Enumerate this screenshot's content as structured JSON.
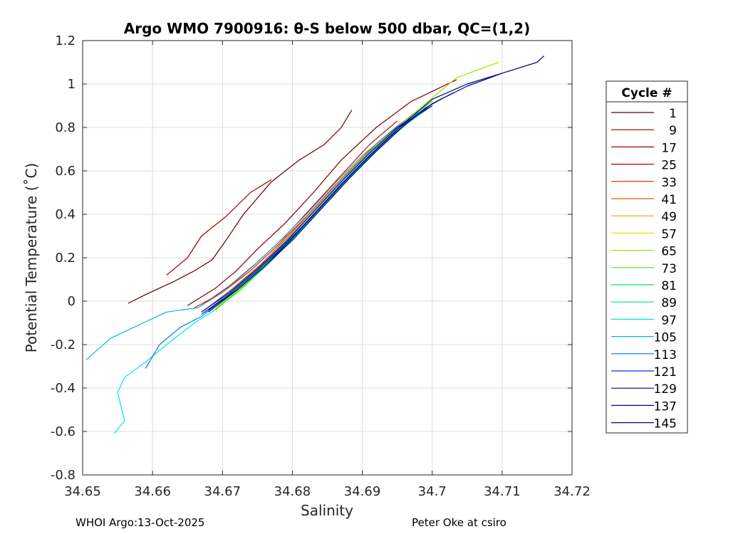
{
  "chart_data": {
    "type": "line",
    "title": "Argo WMO 7900916: θ-S below 500 dbar,  QC=(1,2)",
    "xlabel": "Salinity",
    "ylabel": "Potential Temperature (˚C)",
    "xlim": [
      34.65,
      34.72
    ],
    "ylim": [
      -0.8,
      1.2
    ],
    "xticks": [
      "34.65",
      "34.66",
      "34.67",
      "34.68",
      "34.69",
      "34.7",
      "34.71",
      "34.72"
    ],
    "yticks": [
      "-0.8",
      "-0.6",
      "-0.4",
      "-0.2",
      "0",
      "0.2",
      "0.4",
      "0.6",
      "0.8",
      "1",
      "1.2"
    ],
    "grid": true,
    "legend_title": "Cycle #",
    "legend_position": "right",
    "series": [
      {
        "name": "1",
        "color": "#5a0000",
        "points": [
          [
            34.6565,
            -0.01
          ],
          [
            34.659,
            0.03
          ],
          [
            34.663,
            0.09
          ],
          [
            34.666,
            0.14
          ],
          [
            34.6685,
            0.19
          ],
          [
            34.6705,
            0.28
          ],
          [
            34.673,
            0.4
          ],
          [
            34.677,
            0.55
          ],
          [
            34.681,
            0.65
          ],
          [
            34.6845,
            0.72
          ],
          [
            34.687,
            0.8
          ],
          [
            34.6885,
            0.88
          ]
        ]
      },
      {
        "name": "9",
        "color": "#800000",
        "points": [
          [
            34.665,
            -0.02
          ],
          [
            34.669,
            0.06
          ],
          [
            34.672,
            0.14
          ],
          [
            34.675,
            0.24
          ],
          [
            34.679,
            0.36
          ],
          [
            34.683,
            0.5
          ],
          [
            34.687,
            0.65
          ],
          [
            34.692,
            0.8
          ],
          [
            34.697,
            0.92
          ],
          [
            34.7035,
            1.02
          ]
        ]
      },
      {
        "name": "17",
        "color": "#a00000",
        "points": [
          [
            34.662,
            0.12
          ],
          [
            34.665,
            0.2
          ],
          [
            34.667,
            0.3
          ],
          [
            34.6705,
            0.39
          ],
          [
            34.674,
            0.5
          ],
          [
            34.677,
            0.56
          ]
        ]
      },
      {
        "name": "25",
        "color": "#c80000",
        "points": [
          [
            34.667,
            -0.02
          ],
          [
            34.671,
            0.07
          ],
          [
            34.675,
            0.18
          ],
          [
            34.679,
            0.3
          ],
          [
            34.683,
            0.44
          ],
          [
            34.687,
            0.58
          ],
          [
            34.691,
            0.72
          ],
          [
            34.695,
            0.83
          ]
        ]
      },
      {
        "name": "33",
        "color": "#f01400",
        "points": [
          [
            34.666,
            -0.03
          ],
          [
            34.67,
            0.04
          ],
          [
            34.674,
            0.14
          ],
          [
            34.678,
            0.26
          ],
          [
            34.682,
            0.39
          ],
          [
            34.686,
            0.53
          ],
          [
            34.69,
            0.66
          ],
          [
            34.694,
            0.78
          ],
          [
            34.698,
            0.88
          ]
        ]
      },
      {
        "name": "41",
        "color": "#e65c00",
        "points": [
          [
            34.6675,
            -0.04
          ],
          [
            34.6715,
            0.06
          ],
          [
            34.6755,
            0.17
          ],
          [
            34.6795,
            0.3
          ],
          [
            34.6835,
            0.44
          ],
          [
            34.6875,
            0.58
          ],
          [
            34.6915,
            0.71
          ],
          [
            34.6955,
            0.82
          ]
        ]
      },
      {
        "name": "49",
        "color": "#e6a000",
        "points": [
          [
            34.668,
            -0.04
          ],
          [
            34.672,
            0.07
          ],
          [
            34.676,
            0.18
          ],
          [
            34.68,
            0.31
          ],
          [
            34.684,
            0.45
          ],
          [
            34.688,
            0.59
          ],
          [
            34.692,
            0.72
          ],
          [
            34.696,
            0.83
          ],
          [
            34.7,
            0.92
          ]
        ]
      },
      {
        "name": "57",
        "color": "#e6e600",
        "points": [
          [
            34.669,
            -0.03
          ],
          [
            34.673,
            0.08
          ],
          [
            34.677,
            0.2
          ],
          [
            34.681,
            0.33
          ],
          [
            34.685,
            0.47
          ],
          [
            34.689,
            0.6
          ],
          [
            34.693,
            0.73
          ],
          [
            34.697,
            0.84
          ],
          [
            34.7015,
            0.94
          ]
        ]
      },
      {
        "name": "65",
        "color": "#a0e600",
        "points": [
          [
            34.6685,
            -0.05
          ],
          [
            34.6725,
            0.06
          ],
          [
            34.6765,
            0.18
          ],
          [
            34.6805,
            0.31
          ],
          [
            34.6845,
            0.45
          ],
          [
            34.6885,
            0.59
          ],
          [
            34.6925,
            0.72
          ],
          [
            34.6965,
            0.84
          ],
          [
            34.7005,
            0.95
          ],
          [
            34.7035,
            1.03
          ],
          [
            34.7095,
            1.1
          ]
        ]
      },
      {
        "name": "73",
        "color": "#50e600",
        "points": [
          [
            34.669,
            -0.04
          ],
          [
            34.673,
            0.07
          ],
          [
            34.677,
            0.19
          ],
          [
            34.681,
            0.32
          ],
          [
            34.685,
            0.46
          ],
          [
            34.689,
            0.6
          ],
          [
            34.693,
            0.73
          ],
          [
            34.697,
            0.85
          ],
          [
            34.7,
            0.92
          ]
        ]
      },
      {
        "name": "81",
        "color": "#00e650",
        "points": [
          [
            34.6685,
            -0.05
          ],
          [
            34.6725,
            0.05
          ],
          [
            34.6765,
            0.17
          ],
          [
            34.6805,
            0.3
          ],
          [
            34.6845,
            0.44
          ],
          [
            34.6885,
            0.58
          ],
          [
            34.6925,
            0.71
          ],
          [
            34.6965,
            0.82
          ],
          [
            34.7,
            0.9
          ]
        ]
      },
      {
        "name": "89",
        "color": "#00dca0",
        "points": [
          [
            34.6675,
            -0.05
          ],
          [
            34.6715,
            0.05
          ],
          [
            34.6755,
            0.16
          ],
          [
            34.6795,
            0.29
          ],
          [
            34.6835,
            0.43
          ],
          [
            34.6875,
            0.57
          ],
          [
            34.6915,
            0.7
          ],
          [
            34.6955,
            0.81
          ],
          [
            34.699,
            0.9
          ]
        ]
      },
      {
        "name": "97",
        "color": "#00e6e6",
        "points": [
          [
            34.6545,
            -0.61
          ],
          [
            34.656,
            -0.55
          ],
          [
            34.655,
            -0.42
          ],
          [
            34.656,
            -0.35
          ],
          [
            34.659,
            -0.28
          ],
          [
            34.662,
            -0.2
          ],
          [
            34.666,
            -0.1
          ],
          [
            34.6685,
            -0.05
          ]
        ]
      },
      {
        "name": "105",
        "color": "#00b4e6",
        "points": [
          [
            34.6505,
            -0.27
          ],
          [
            34.654,
            -0.17
          ],
          [
            34.658,
            -0.11
          ],
          [
            34.662,
            -0.05
          ],
          [
            34.6665,
            -0.03
          ],
          [
            34.67,
            0.04
          ],
          [
            34.674,
            0.15
          ],
          [
            34.678,
            0.27
          ],
          [
            34.682,
            0.4
          ],
          [
            34.686,
            0.54
          ],
          [
            34.69,
            0.67
          ],
          [
            34.694,
            0.78
          ],
          [
            34.698,
            0.87
          ]
        ]
      },
      {
        "name": "113",
        "color": "#0078e6",
        "points": [
          [
            34.659,
            -0.31
          ],
          [
            34.661,
            -0.2
          ],
          [
            34.664,
            -0.12
          ],
          [
            34.667,
            -0.07
          ],
          [
            34.6705,
            0.02
          ],
          [
            34.6745,
            0.13
          ],
          [
            34.6785,
            0.25
          ],
          [
            34.6825,
            0.38
          ],
          [
            34.6865,
            0.52
          ],
          [
            34.6905,
            0.65
          ],
          [
            34.6945,
            0.77
          ],
          [
            34.698,
            0.86
          ]
        ]
      },
      {
        "name": "121",
        "color": "#0032dc",
        "points": [
          [
            34.667,
            -0.06
          ],
          [
            34.671,
            0.03
          ],
          [
            34.675,
            0.14
          ],
          [
            34.679,
            0.26
          ],
          [
            34.683,
            0.4
          ],
          [
            34.687,
            0.54
          ],
          [
            34.691,
            0.67
          ],
          [
            34.695,
            0.79
          ],
          [
            34.699,
            0.89
          ],
          [
            34.703,
            0.96
          ]
        ]
      },
      {
        "name": "129",
        "color": "#000096",
        "points": [
          [
            34.668,
            -0.04
          ],
          [
            34.672,
            0.05
          ],
          [
            34.676,
            0.16
          ],
          [
            34.68,
            0.28
          ],
          [
            34.684,
            0.42
          ],
          [
            34.688,
            0.56
          ],
          [
            34.692,
            0.69
          ],
          [
            34.696,
            0.81
          ],
          [
            34.7,
            0.91
          ],
          [
            34.705,
            0.99
          ],
          [
            34.71,
            1.05
          ]
        ]
      },
      {
        "name": "137",
        "color": "#0000b4",
        "points": [
          [
            34.667,
            -0.05
          ],
          [
            34.671,
            0.04
          ],
          [
            34.675,
            0.15
          ],
          [
            34.679,
            0.27
          ],
          [
            34.683,
            0.41
          ],
          [
            34.687,
            0.55
          ],
          [
            34.691,
            0.68
          ],
          [
            34.695,
            0.8
          ],
          [
            34.7,
            0.9
          ]
        ]
      },
      {
        "name": "145",
        "color": "#000078",
        "points": [
          [
            34.668,
            -0.05
          ],
          [
            34.672,
            0.05
          ],
          [
            34.676,
            0.16
          ],
          [
            34.68,
            0.29
          ],
          [
            34.684,
            0.43
          ],
          [
            34.688,
            0.57
          ],
          [
            34.692,
            0.7
          ],
          [
            34.696,
            0.82
          ],
          [
            34.7,
            0.93
          ],
          [
            34.705,
            1.0
          ],
          [
            34.71,
            1.05
          ],
          [
            34.715,
            1.1
          ],
          [
            34.716,
            1.13
          ]
        ]
      }
    ]
  },
  "footer": {
    "left": "WHOI Argo:13-Oct-2025",
    "right": "Peter Oke at csiro"
  }
}
